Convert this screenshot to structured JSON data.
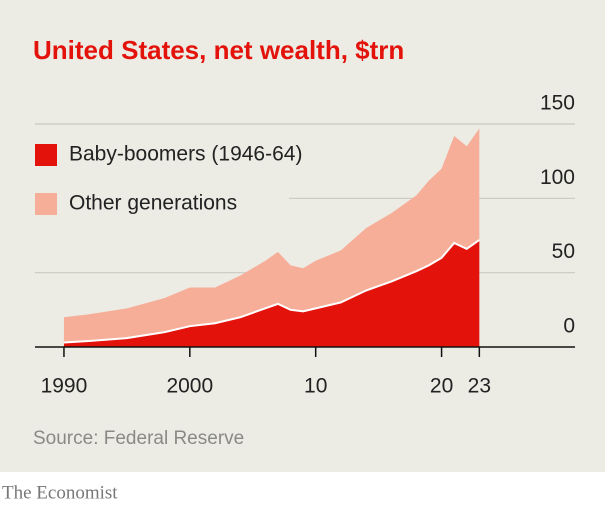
{
  "chart_data": {
    "type": "stacked_area",
    "title": "United States, net wealth, $trn",
    "source": "Source: Federal Reserve",
    "publisher": "The Economist",
    "x": [
      1990,
      1992,
      1995,
      1998,
      2000,
      2002,
      2004,
      2006,
      2007,
      2008,
      2009,
      2010,
      2012,
      2014,
      2016,
      2018,
      2019,
      2020,
      2021,
      2022,
      2023
    ],
    "series": [
      {
        "name": "Baby-boomers (1946-64)",
        "color": "#e3120b",
        "values": [
          3,
          4,
          6,
          10,
          14,
          16,
          20,
          26,
          29,
          25,
          24,
          26,
          30,
          38,
          44,
          51,
          55,
          60,
          70,
          66,
          72
        ]
      },
      {
        "name": "Other generations",
        "color": "#f7ae99",
        "values": [
          17,
          18,
          20,
          23,
          26,
          24,
          28,
          32,
          35,
          30,
          29,
          32,
          35,
          42,
          46,
          51,
          57,
          60,
          72,
          69,
          75
        ]
      }
    ],
    "xlim": [
      1987.7,
      2030.6
    ],
    "xticks": [
      1990,
      2000,
      {
        "value": 2010,
        "label": "10"
      },
      {
        "value": 2020,
        "label": "20"
      },
      {
        "value": 2023,
        "label": "23"
      }
    ],
    "ylim": [
      0,
      150
    ],
    "yticks": [
      0,
      50,
      100,
      150
    ],
    "grid": true,
    "legend": "top-left"
  }
}
